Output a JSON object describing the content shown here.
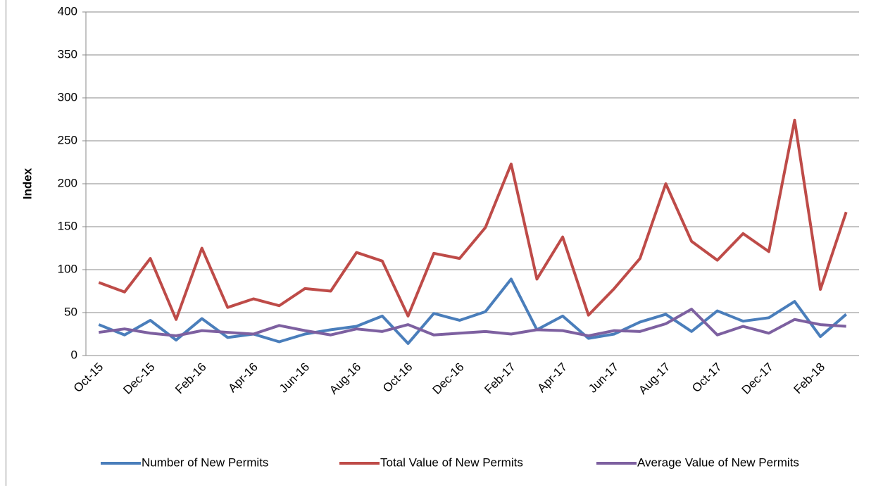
{
  "chart_data": {
    "type": "line",
    "y_label": "Index",
    "categories": [
      "Oct-15",
      null,
      "Dec-15",
      null,
      "Feb-16",
      null,
      "Apr-16",
      null,
      "Jun-16",
      null,
      "Aug-16",
      null,
      "Oct-16",
      null,
      "Dec-16",
      null,
      "Feb-17",
      null,
      "Apr-17",
      null,
      "Jun-17",
      null,
      "Aug-17",
      null,
      "Oct-17",
      null,
      "Dec-17",
      null,
      "Feb-18",
      null
    ],
    "series": [
      {
        "name": "Number of New Permits",
        "color": "#4a7ebb",
        "values": [
          36,
          24,
          41,
          18,
          43,
          21,
          25,
          16,
          25,
          30,
          34,
          46,
          14,
          49,
          41,
          51,
          89,
          30,
          46,
          20,
          25,
          39,
          48,
          28,
          52,
          40,
          44,
          63,
          22,
          48
        ]
      },
      {
        "name": "Total Value of New Permits",
        "color": "#be4b48",
        "values": [
          85,
          74,
          113,
          42,
          125,
          56,
          66,
          58,
          78,
          75,
          120,
          110,
          46,
          119,
          113,
          149,
          223,
          89,
          138,
          47,
          78,
          113,
          200,
          133,
          111,
          142,
          121,
          274,
          77,
          167
        ]
      },
      {
        "name": "Average Value of New Permits",
        "color": "#7d60a0",
        "values": [
          27,
          31,
          26,
          23,
          29,
          27,
          25,
          35,
          29,
          24,
          31,
          28,
          36,
          24,
          26,
          28,
          25,
          30,
          29,
          23,
          29,
          28,
          37,
          54,
          24,
          34,
          26,
          42,
          36,
          34
        ]
      }
    ],
    "ylim": [
      0,
      400
    ],
    "yticks": [
      0,
      50,
      100,
      150,
      200,
      250,
      300,
      350,
      400
    ],
    "grid": true,
    "legend": "bottom"
  }
}
